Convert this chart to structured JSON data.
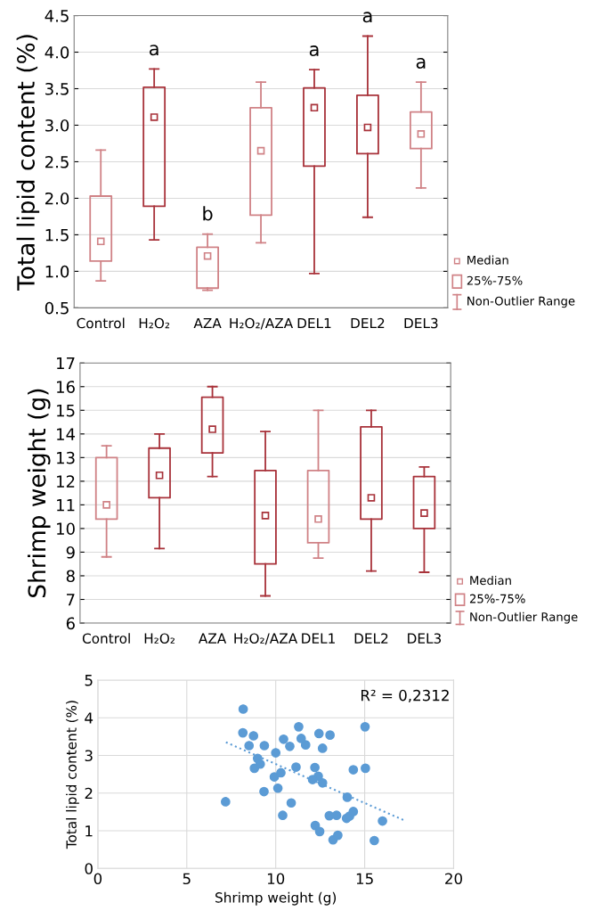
{
  "chart_data": [
    {
      "type": "box",
      "ylabel": "Total lipid content (%)",
      "categories": [
        "Control",
        "H₂O₂",
        "AZA",
        "H₂O₂/AZA",
        "DEL1",
        "DEL2",
        "DEL3"
      ],
      "colors": [
        "#d08286",
        "#a8323a",
        "#d08286",
        "#d08286",
        "#a8323a",
        "#a8323a",
        "#d08286"
      ],
      "boxes": [
        {
          "low": 0.87,
          "q1": 1.14,
          "median": 1.41,
          "q3": 2.03,
          "high": 2.66
        },
        {
          "low": 1.43,
          "q1": 1.89,
          "median": 3.11,
          "q3": 3.52,
          "high": 3.77
        },
        {
          "low": 0.74,
          "q1": 0.77,
          "median": 1.21,
          "q3": 1.33,
          "high": 1.51
        },
        {
          "low": 1.39,
          "q1": 1.77,
          "median": 2.65,
          "q3": 3.24,
          "high": 3.59
        },
        {
          "low": 0.97,
          "q1": 2.44,
          "median": 3.24,
          "q3": 3.51,
          "high": 3.76
        },
        {
          "low": 1.74,
          "q1": 2.61,
          "median": 2.97,
          "q3": 3.41,
          "high": 4.22
        },
        {
          "low": 2.14,
          "q1": 2.68,
          "median": 2.88,
          "q3": 3.18,
          "high": 3.59
        }
      ],
      "ylim": [
        0.5,
        4.5
      ],
      "yticks": [
        {
          "value": 0.5,
          "label": "0.5"
        },
        {
          "value": 1,
          "label": "1.0"
        },
        {
          "value": 1.5,
          "label": "1.5"
        },
        {
          "value": 2,
          "label": "2.0"
        },
        {
          "value": 2.5,
          "label": "2.5"
        },
        {
          "value": 3,
          "label": "3.0"
        },
        {
          "value": 3.5,
          "label": "3.5"
        },
        {
          "value": 4,
          "label": "4.0"
        },
        {
          "value": 4.5,
          "label": "4.5"
        }
      ],
      "grid": "y",
      "marker": "square",
      "annotations": [
        "Median",
        "25%-75%",
        "Non-Outlier Range",
        {
          "text": "a",
          "x": "H₂O₂",
          "y": 3.77
        },
        {
          "text": "b",
          "x": "AZA",
          "y": 1.51
        },
        {
          "text": "a",
          "x": "DEL1",
          "y": 3.76
        },
        {
          "text": "a",
          "x": "DEL2",
          "y": 4.22
        },
        {
          "text": "a",
          "x": "DEL3",
          "y": 3.59
        }
      ]
    },
    {
      "type": "box",
      "ylabel": "Shrimp weight (g)",
      "categories": [
        "Control",
        "H₂O₂",
        "AZA",
        "H₂O₂/AZA",
        "DEL1",
        "DEL2",
        "DEL3"
      ],
      "colors": [
        "#d08286",
        "#a8323a",
        "#a8323a",
        "#a8323a",
        "#d08286",
        "#a8323a",
        "#a8323a"
      ],
      "boxes": [
        {
          "low": 8.8,
          "q1": 10.4,
          "median": 11.0,
          "q3": 13.0,
          "high": 13.5
        },
        {
          "low": 9.15,
          "q1": 11.3,
          "median": 12.25,
          "q3": 13.4,
          "high": 14.0
        },
        {
          "low": 12.2,
          "q1": 13.2,
          "median": 14.2,
          "q3": 15.55,
          "high": 16.0
        },
        {
          "low": 7.15,
          "q1": 8.5,
          "median": 10.55,
          "q3": 12.45,
          "high": 14.1
        },
        {
          "low": 8.75,
          "q1": 9.4,
          "median": 10.4,
          "q3": 12.45,
          "high": 15.0
        },
        {
          "low": 8.2,
          "q1": 10.4,
          "median": 11.3,
          "q3": 14.3,
          "high": 15.0
        },
        {
          "low": 8.15,
          "q1": 10.0,
          "median": 10.65,
          "q3": 12.2,
          "high": 12.6
        }
      ],
      "ylim": [
        6,
        17
      ],
      "yticks": [
        6,
        7,
        8,
        9,
        10,
        11,
        12,
        13,
        14,
        15,
        16,
        17
      ],
      "grid": "y",
      "marker": "square",
      "annotations": [
        "Median",
        "25%-75%",
        "Non-Outlier Range"
      ]
    },
    {
      "type": "scatter",
      "xlabel": "Shrimp weight (g)",
      "ylabel": "Total lipid content (%)",
      "xlim": [
        0,
        20
      ],
      "xticks": [
        0,
        5,
        10,
        15,
        20
      ],
      "ylim": [
        0,
        5
      ],
      "yticks": [
        0,
        1,
        2,
        3,
        4,
        5
      ],
      "grid": true,
      "marker": "circle",
      "annotations": [
        "R² = 0,2312"
      ],
      "series": [
        {
          "color": "#5b9bd5",
          "x": [
            8.17,
            8.15,
            8.75,
            8.5,
            9.36,
            8.98,
            9.13,
            8.8,
            9.34,
            7.18,
            10.0,
            10.44,
            10.79,
            9.92,
            10.29,
            10.12,
            10.87,
            10.39,
            11.29,
            11.43,
            11.68,
            11.14,
            12.43,
            13.05,
            12.63,
            12.2,
            12.39,
            12.07,
            12.63,
            12.22,
            12.47,
            13.22,
            13.49,
            13.01,
            13.42,
            14.02,
            13.98,
            14.15,
            14.36,
            14.36,
            15.02,
            15.04,
            15.54,
            16.0
          ],
          "values": [
            4.23,
            3.6,
            3.52,
            3.26,
            3.26,
            2.92,
            2.77,
            2.66,
            2.04,
            1.77,
            3.07,
            3.43,
            3.24,
            2.43,
            2.54,
            2.13,
            1.74,
            1.41,
            3.76,
            3.45,
            3.28,
            2.69,
            3.58,
            3.54,
            3.19,
            2.68,
            2.45,
            2.36,
            2.27,
            1.14,
            0.98,
            0.76,
            0.88,
            1.4,
            1.41,
            1.89,
            1.33,
            1.39,
            1.51,
            2.62,
            3.76,
            2.66,
            0.74,
            1.26
          ]
        },
        {
          "type": "line",
          "marker": "none",
          "line_style": "dotted",
          "color": "#5b9bd5",
          "x": [
            7.2,
            17.3
          ],
          "values": [
            3.35,
            1.26
          ]
        }
      ]
    }
  ]
}
